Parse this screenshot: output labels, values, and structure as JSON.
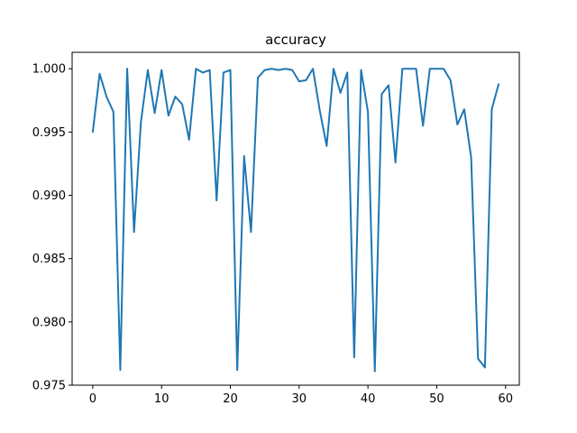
{
  "chart_data": {
    "type": "line",
    "title": "accuracy",
    "xlabel": "",
    "ylabel": "",
    "xlim": [
      -3,
      62
    ],
    "ylim": [
      0.975,
      1.0013
    ],
    "xticks": [
      0,
      10,
      20,
      30,
      40,
      50,
      60
    ],
    "xtick_labels": [
      "0",
      "10",
      "20",
      "30",
      "40",
      "50",
      "60"
    ],
    "yticks": [
      0.975,
      0.98,
      0.985,
      0.99,
      0.995,
      1.0
    ],
    "ytick_labels": [
      "0.975",
      "0.980",
      "0.985",
      "0.990",
      "0.995",
      "1.000"
    ],
    "grid": false,
    "line_color": "#1f77b4",
    "x": [
      0,
      1,
      2,
      3,
      4,
      5,
      6,
      7,
      8,
      9,
      10,
      11,
      12,
      13,
      14,
      15,
      16,
      17,
      18,
      19,
      20,
      21,
      22,
      23,
      24,
      25,
      26,
      27,
      28,
      29,
      30,
      31,
      32,
      33,
      34,
      35,
      36,
      37,
      38,
      39,
      40,
      41,
      42,
      43,
      44,
      45,
      46,
      47,
      48,
      49,
      50,
      51,
      52,
      53,
      54,
      55,
      56,
      57,
      58,
      59
    ],
    "y": [
      0.995,
      0.9996,
      0.9978,
      0.9966,
      0.9762,
      1.0,
      0.9871,
      0.9958,
      0.9999,
      0.9965,
      0.9999,
      0.9963,
      0.9978,
      0.9972,
      0.9944,
      1.0,
      0.9997,
      0.9999,
      0.9896,
      0.9997,
      0.9999,
      0.9762,
      0.9931,
      0.9871,
      0.9993,
      0.9999,
      1.0,
      0.9999,
      1.0,
      0.9999,
      0.999,
      0.9991,
      1.0,
      0.9967,
      0.9939,
      1.0,
      0.9981,
      0.9997,
      0.9772,
      0.9999,
      0.9966,
      0.9761,
      0.998,
      0.9987,
      0.9926,
      1.0,
      1.0,
      1.0,
      0.9955,
      1.0,
      1.0,
      1.0,
      0.9991,
      0.9956,
      0.9968,
      0.993,
      0.9771,
      0.9764,
      0.9968,
      0.9988
    ]
  }
}
